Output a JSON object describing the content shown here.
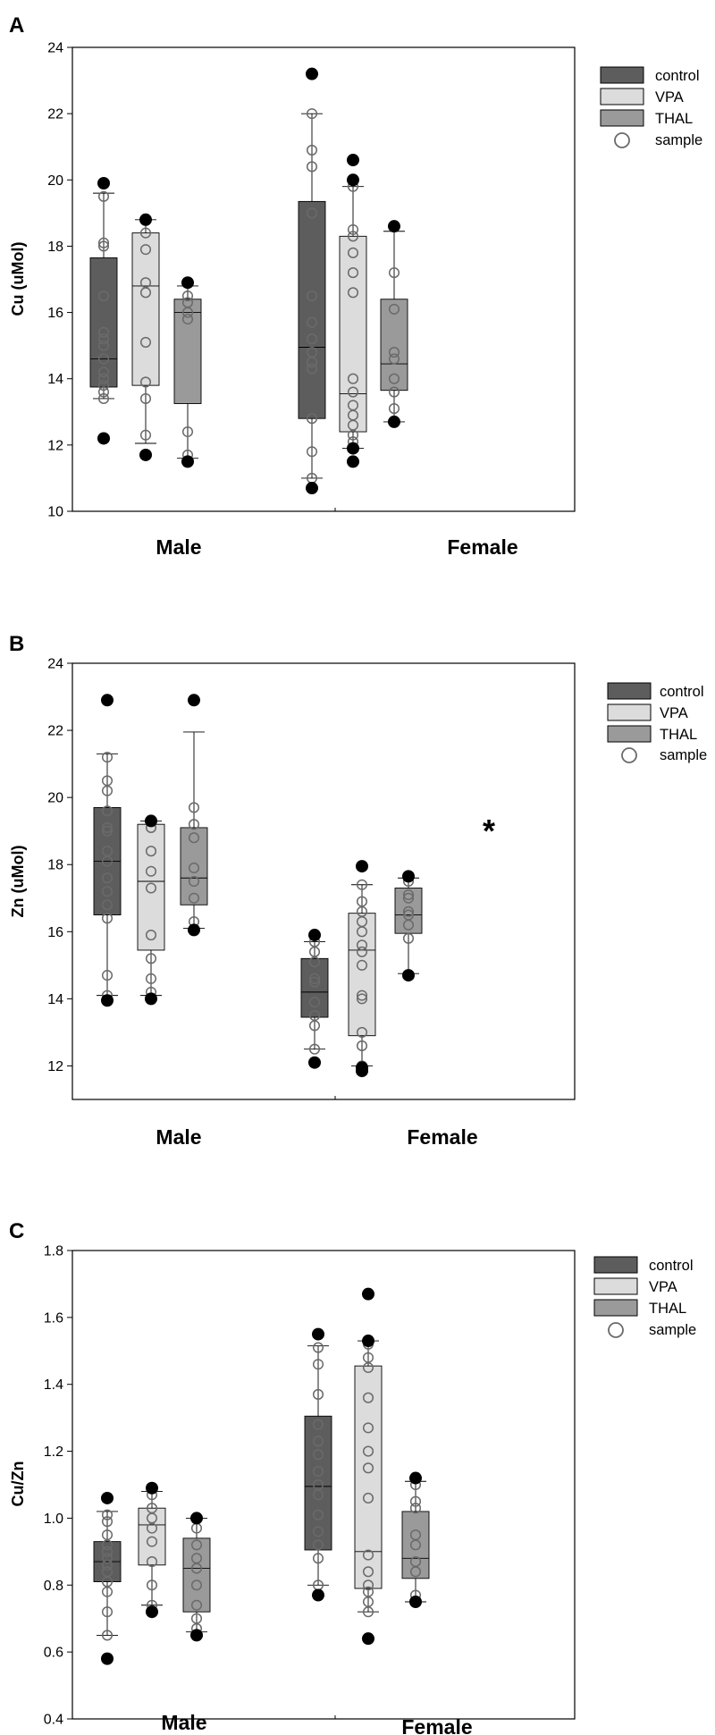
{
  "figure": {
    "colors": {
      "control": "#5d5d5d",
      "vpa": "#dcdcdc",
      "thal": "#9a9a9a",
      "sample_stroke": "#6a6a6a",
      "outlier": "#000000"
    }
  },
  "chart_data": [
    {
      "panel": "A",
      "type": "box",
      "ylabel": "Cu (uMol)",
      "ylim": [
        10,
        24
      ],
      "yticks": [
        10,
        12,
        14,
        16,
        18,
        20,
        22,
        24
      ],
      "tick_labels": [
        "10",
        "12",
        "14",
        "16",
        "18",
        "20",
        "22",
        "24"
      ],
      "categories": [
        "Male",
        "Female"
      ],
      "legend": [
        "control",
        "VPA",
        "THAL",
        "sample"
      ],
      "annotation": "",
      "boxes": [
        {
          "group": "Male",
          "series": "control",
          "whisker_low": 13.4,
          "q1": 13.75,
          "median": 14.6,
          "q3": 17.65,
          "whisker_high": 19.6,
          "samples": [
            13.4,
            13.6,
            13.8,
            14.0,
            14.2,
            14.6,
            15.0,
            15.2,
            15.4,
            16.5,
            18.0,
            18.1,
            19.5
          ],
          "outliers": [
            12.2,
            19.9
          ]
        },
        {
          "group": "Male",
          "series": "VPA",
          "whisker_low": 12.05,
          "q1": 13.8,
          "median": 16.8,
          "q3": 18.4,
          "whisker_high": 18.8,
          "samples": [
            12.3,
            13.4,
            13.9,
            15.1,
            16.6,
            16.9,
            17.9,
            18.4
          ],
          "outliers": [
            11.7,
            18.8
          ]
        },
        {
          "group": "Male",
          "series": "THAL",
          "whisker_low": 11.6,
          "q1": 13.25,
          "median": 16.0,
          "q3": 16.4,
          "whisker_high": 16.8,
          "samples": [
            11.7,
            12.4,
            15.8,
            16.0,
            16.3,
            16.5
          ],
          "outliers": [
            11.5,
            16.9
          ]
        },
        {
          "group": "Female",
          "series": "control",
          "whisker_low": 11.0,
          "q1": 12.8,
          "median": 14.95,
          "q3": 19.35,
          "whisker_high": 22.0,
          "samples": [
            11.0,
            11.8,
            12.8,
            14.3,
            14.5,
            14.8,
            15.2,
            15.7,
            16.5,
            19.0,
            20.4,
            20.9,
            22.0
          ],
          "outliers": [
            10.7,
            23.2
          ]
        },
        {
          "group": "Female",
          "series": "VPA",
          "whisker_low": 11.9,
          "q1": 12.4,
          "median": 13.55,
          "q3": 18.3,
          "whisker_high": 19.8,
          "samples": [
            11.9,
            12.1,
            12.3,
            12.6,
            12.9,
            13.2,
            13.6,
            14.0,
            16.6,
            17.2,
            17.8,
            18.3,
            18.5,
            19.8
          ],
          "outliers": [
            11.5,
            11.9,
            20.0,
            20.6
          ]
        },
        {
          "group": "Female",
          "series": "THAL",
          "whisker_low": 12.7,
          "q1": 13.65,
          "median": 14.45,
          "q3": 16.4,
          "whisker_high": 18.45,
          "samples": [
            13.1,
            13.6,
            14.0,
            14.6,
            14.8,
            16.1,
            17.2
          ],
          "outliers": [
            12.7,
            18.6
          ]
        }
      ]
    },
    {
      "panel": "B",
      "type": "box",
      "ylabel": "Zn (uMol)",
      "ylim": [
        11,
        24
      ],
      "yticks": [
        12,
        14,
        16,
        18,
        20,
        22,
        24
      ],
      "tick_labels": [
        "12",
        "14",
        "16",
        "18",
        "20",
        "22",
        "24"
      ],
      "categories": [
        "Male",
        "Female"
      ],
      "legend": [
        "control",
        "VPA",
        "THAL",
        "sample"
      ],
      "annotation": "*",
      "boxes": [
        {
          "group": "Male",
          "series": "control",
          "whisker_low": 14.1,
          "q1": 16.5,
          "median": 18.1,
          "q3": 19.7,
          "whisker_high": 21.3,
          "samples": [
            14.1,
            14.7,
            16.4,
            16.8,
            17.2,
            17.6,
            18.1,
            18.4,
            19.0,
            19.1,
            19.6,
            20.2,
            20.5,
            21.2
          ],
          "outliers": [
            13.95,
            22.9
          ]
        },
        {
          "group": "Male",
          "series": "VPA",
          "whisker_low": 14.1,
          "q1": 15.45,
          "median": 17.5,
          "q3": 19.2,
          "whisker_high": 19.3,
          "samples": [
            14.2,
            14.6,
            15.2,
            15.9,
            17.3,
            17.8,
            18.4,
            19.1
          ],
          "outliers": [
            14.0,
            19.3
          ]
        },
        {
          "group": "Male",
          "series": "THAL",
          "whisker_low": 16.1,
          "q1": 16.8,
          "median": 17.6,
          "q3": 19.1,
          "whisker_high": 21.95,
          "samples": [
            16.3,
            17.0,
            17.5,
            17.9,
            18.8,
            19.2,
            19.7
          ],
          "outliers": [
            16.05,
            22.9
          ]
        },
        {
          "group": "Female",
          "series": "control",
          "whisker_low": 12.5,
          "q1": 13.45,
          "median": 14.2,
          "q3": 15.2,
          "whisker_high": 15.7,
          "samples": [
            12.5,
            13.2,
            13.5,
            13.9,
            14.5,
            14.6,
            15.1,
            15.4,
            15.7
          ],
          "outliers": [
            12.1,
            15.9
          ]
        },
        {
          "group": "Female",
          "series": "VPA",
          "whisker_low": 12.0,
          "q1": 12.9,
          "median": 15.45,
          "q3": 16.55,
          "whisker_high": 17.4,
          "samples": [
            12.0,
            12.6,
            13.0,
            14.0,
            14.1,
            15.0,
            15.4,
            15.6,
            16.0,
            16.3,
            16.6,
            16.9,
            17.4
          ],
          "outliers": [
            11.85,
            11.95,
            17.95
          ]
        },
        {
          "group": "Female",
          "series": "THAL",
          "whisker_low": 14.75,
          "q1": 15.95,
          "median": 16.5,
          "q3": 17.3,
          "whisker_high": 17.6,
          "samples": [
            15.8,
            16.2,
            16.5,
            16.6,
            17.0,
            17.1,
            17.5
          ],
          "outliers": [
            14.7,
            17.65
          ]
        }
      ]
    },
    {
      "panel": "C",
      "type": "box",
      "ylabel": "Cu/Zn",
      "ylim": [
        0.4,
        1.8
      ],
      "yticks": [
        0.4,
        0.6,
        0.8,
        1.0,
        1.2,
        1.4,
        1.6,
        1.8
      ],
      "tick_labels": [
        "0.4",
        "0.6",
        "0.8",
        "1.0",
        "1.2",
        "1.4",
        "1.6",
        "1.8"
      ],
      "categories": [
        "Male",
        "Female"
      ],
      "legend": [
        "control",
        "VPA",
        "THAL",
        "sample"
      ],
      "annotation": "",
      "boxes": [
        {
          "group": "Male",
          "series": "control",
          "whisker_low": 0.65,
          "q1": 0.81,
          "median": 0.87,
          "q3": 0.93,
          "whisker_high": 1.02,
          "samples": [
            0.65,
            0.72,
            0.78,
            0.81,
            0.84,
            0.86,
            0.88,
            0.9,
            0.92,
            0.95,
            0.99,
            1.01
          ],
          "outliers": [
            0.58,
            1.06
          ]
        },
        {
          "group": "Male",
          "series": "VPA",
          "whisker_low": 0.74,
          "q1": 0.86,
          "median": 0.98,
          "q3": 1.03,
          "whisker_high": 1.08,
          "samples": [
            0.74,
            0.8,
            0.87,
            0.93,
            0.97,
            1.0,
            1.03,
            1.07
          ],
          "outliers": [
            0.72,
            1.09
          ]
        },
        {
          "group": "Male",
          "series": "THAL",
          "whisker_low": 0.66,
          "q1": 0.72,
          "median": 0.85,
          "q3": 0.94,
          "whisker_high": 1.0,
          "samples": [
            0.67,
            0.7,
            0.74,
            0.8,
            0.85,
            0.88,
            0.92,
            0.97
          ],
          "outliers": [
            0.65,
            1.0
          ]
        },
        {
          "group": "Female",
          "series": "control",
          "whisker_low": 0.8,
          "q1": 0.905,
          "median": 1.095,
          "q3": 1.305,
          "whisker_high": 1.515,
          "samples": [
            0.8,
            0.88,
            0.92,
            0.96,
            1.01,
            1.07,
            1.1,
            1.14,
            1.19,
            1.23,
            1.28,
            1.37,
            1.46,
            1.51
          ],
          "outliers": [
            0.77,
            1.55
          ]
        },
        {
          "group": "Female",
          "series": "VPA",
          "whisker_low": 0.72,
          "q1": 0.79,
          "median": 0.9,
          "q3": 1.455,
          "whisker_high": 1.53,
          "samples": [
            0.72,
            0.75,
            0.78,
            0.8,
            0.84,
            0.89,
            1.06,
            1.15,
            1.2,
            1.27,
            1.36,
            1.45,
            1.48,
            1.52
          ],
          "outliers": [
            0.64,
            1.53,
            1.67
          ]
        },
        {
          "group": "Female",
          "series": "THAL",
          "whisker_low": 0.75,
          "q1": 0.82,
          "median": 0.88,
          "q3": 1.02,
          "whisker_high": 1.11,
          "samples": [
            0.77,
            0.84,
            0.87,
            0.92,
            0.95,
            1.03,
            1.05,
            1.1
          ],
          "outliers": [
            0.75,
            1.12
          ]
        }
      ]
    }
  ]
}
